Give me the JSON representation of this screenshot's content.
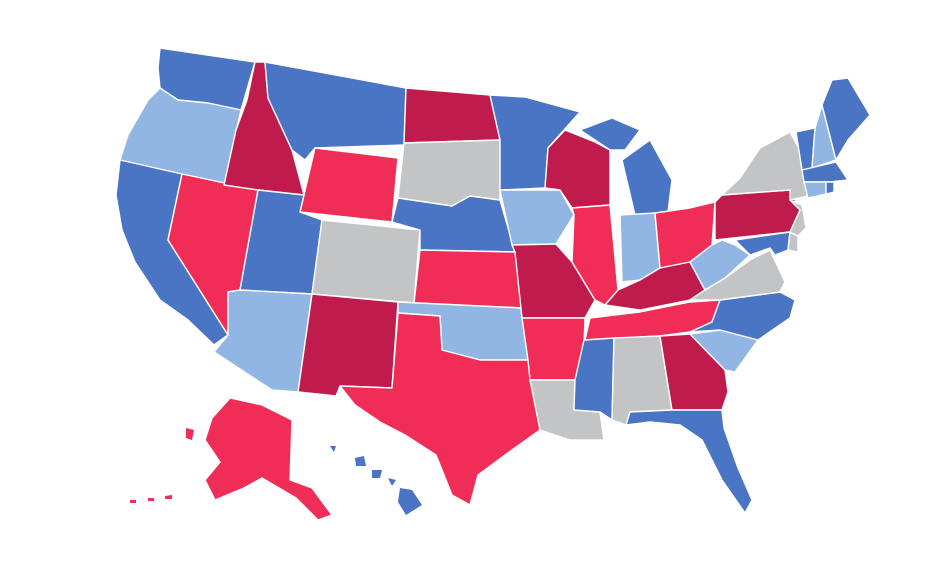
{
  "palette": {
    "strong_blue": "#4a74c4",
    "light_blue": "#92b6e3",
    "red": "#ef2d56",
    "dark_red": "#bf1b4c",
    "gray": "#c3c4c6",
    "background": "#ffffff"
  },
  "states": [
    {
      "id": "WA",
      "category": "strong_blue"
    },
    {
      "id": "OR",
      "category": "light_blue"
    },
    {
      "id": "CA",
      "category": "strong_blue"
    },
    {
      "id": "NV",
      "category": "red"
    },
    {
      "id": "ID",
      "category": "dark_red"
    },
    {
      "id": "MT",
      "category": "strong_blue"
    },
    {
      "id": "WY",
      "category": "red"
    },
    {
      "id": "UT",
      "category": "strong_blue"
    },
    {
      "id": "AZ",
      "category": "light_blue"
    },
    {
      "id": "CO",
      "category": "gray"
    },
    {
      "id": "NM",
      "category": "dark_red"
    },
    {
      "id": "ND",
      "category": "dark_red"
    },
    {
      "id": "SD",
      "category": "gray"
    },
    {
      "id": "NE",
      "category": "strong_blue"
    },
    {
      "id": "KS",
      "category": "red"
    },
    {
      "id": "OK",
      "category": "light_blue"
    },
    {
      "id": "TX",
      "category": "red"
    },
    {
      "id": "MN",
      "category": "strong_blue"
    },
    {
      "id": "IA",
      "category": "light_blue"
    },
    {
      "id": "MO",
      "category": "dark_red"
    },
    {
      "id": "AR",
      "category": "red"
    },
    {
      "id": "LA",
      "category": "gray"
    },
    {
      "id": "WI",
      "category": "dark_red"
    },
    {
      "id": "IL",
      "category": "red"
    },
    {
      "id": "MI",
      "category": "strong_blue"
    },
    {
      "id": "IN",
      "category": "light_blue"
    },
    {
      "id": "OH",
      "category": "red"
    },
    {
      "id": "KY",
      "category": "dark_red"
    },
    {
      "id": "TN",
      "category": "red"
    },
    {
      "id": "MS",
      "category": "strong_blue"
    },
    {
      "id": "AL",
      "category": "gray"
    },
    {
      "id": "GA",
      "category": "dark_red"
    },
    {
      "id": "FL",
      "category": "strong_blue"
    },
    {
      "id": "SC",
      "category": "light_blue"
    },
    {
      "id": "NC",
      "category": "strong_blue"
    },
    {
      "id": "VA",
      "category": "gray"
    },
    {
      "id": "WV",
      "category": "light_blue"
    },
    {
      "id": "PA",
      "category": "dark_red"
    },
    {
      "id": "NY",
      "category": "gray"
    },
    {
      "id": "NJ",
      "category": "gray"
    },
    {
      "id": "DE",
      "category": "gray"
    },
    {
      "id": "MD",
      "category": "strong_blue"
    },
    {
      "id": "CT",
      "category": "light_blue"
    },
    {
      "id": "RI",
      "category": "strong_blue"
    },
    {
      "id": "MA",
      "category": "strong_blue"
    },
    {
      "id": "VT",
      "category": "strong_blue"
    },
    {
      "id": "NH",
      "category": "light_blue"
    },
    {
      "id": "ME",
      "category": "strong_blue"
    },
    {
      "id": "AK",
      "category": "red"
    },
    {
      "id": "HI",
      "category": "strong_blue"
    }
  ]
}
